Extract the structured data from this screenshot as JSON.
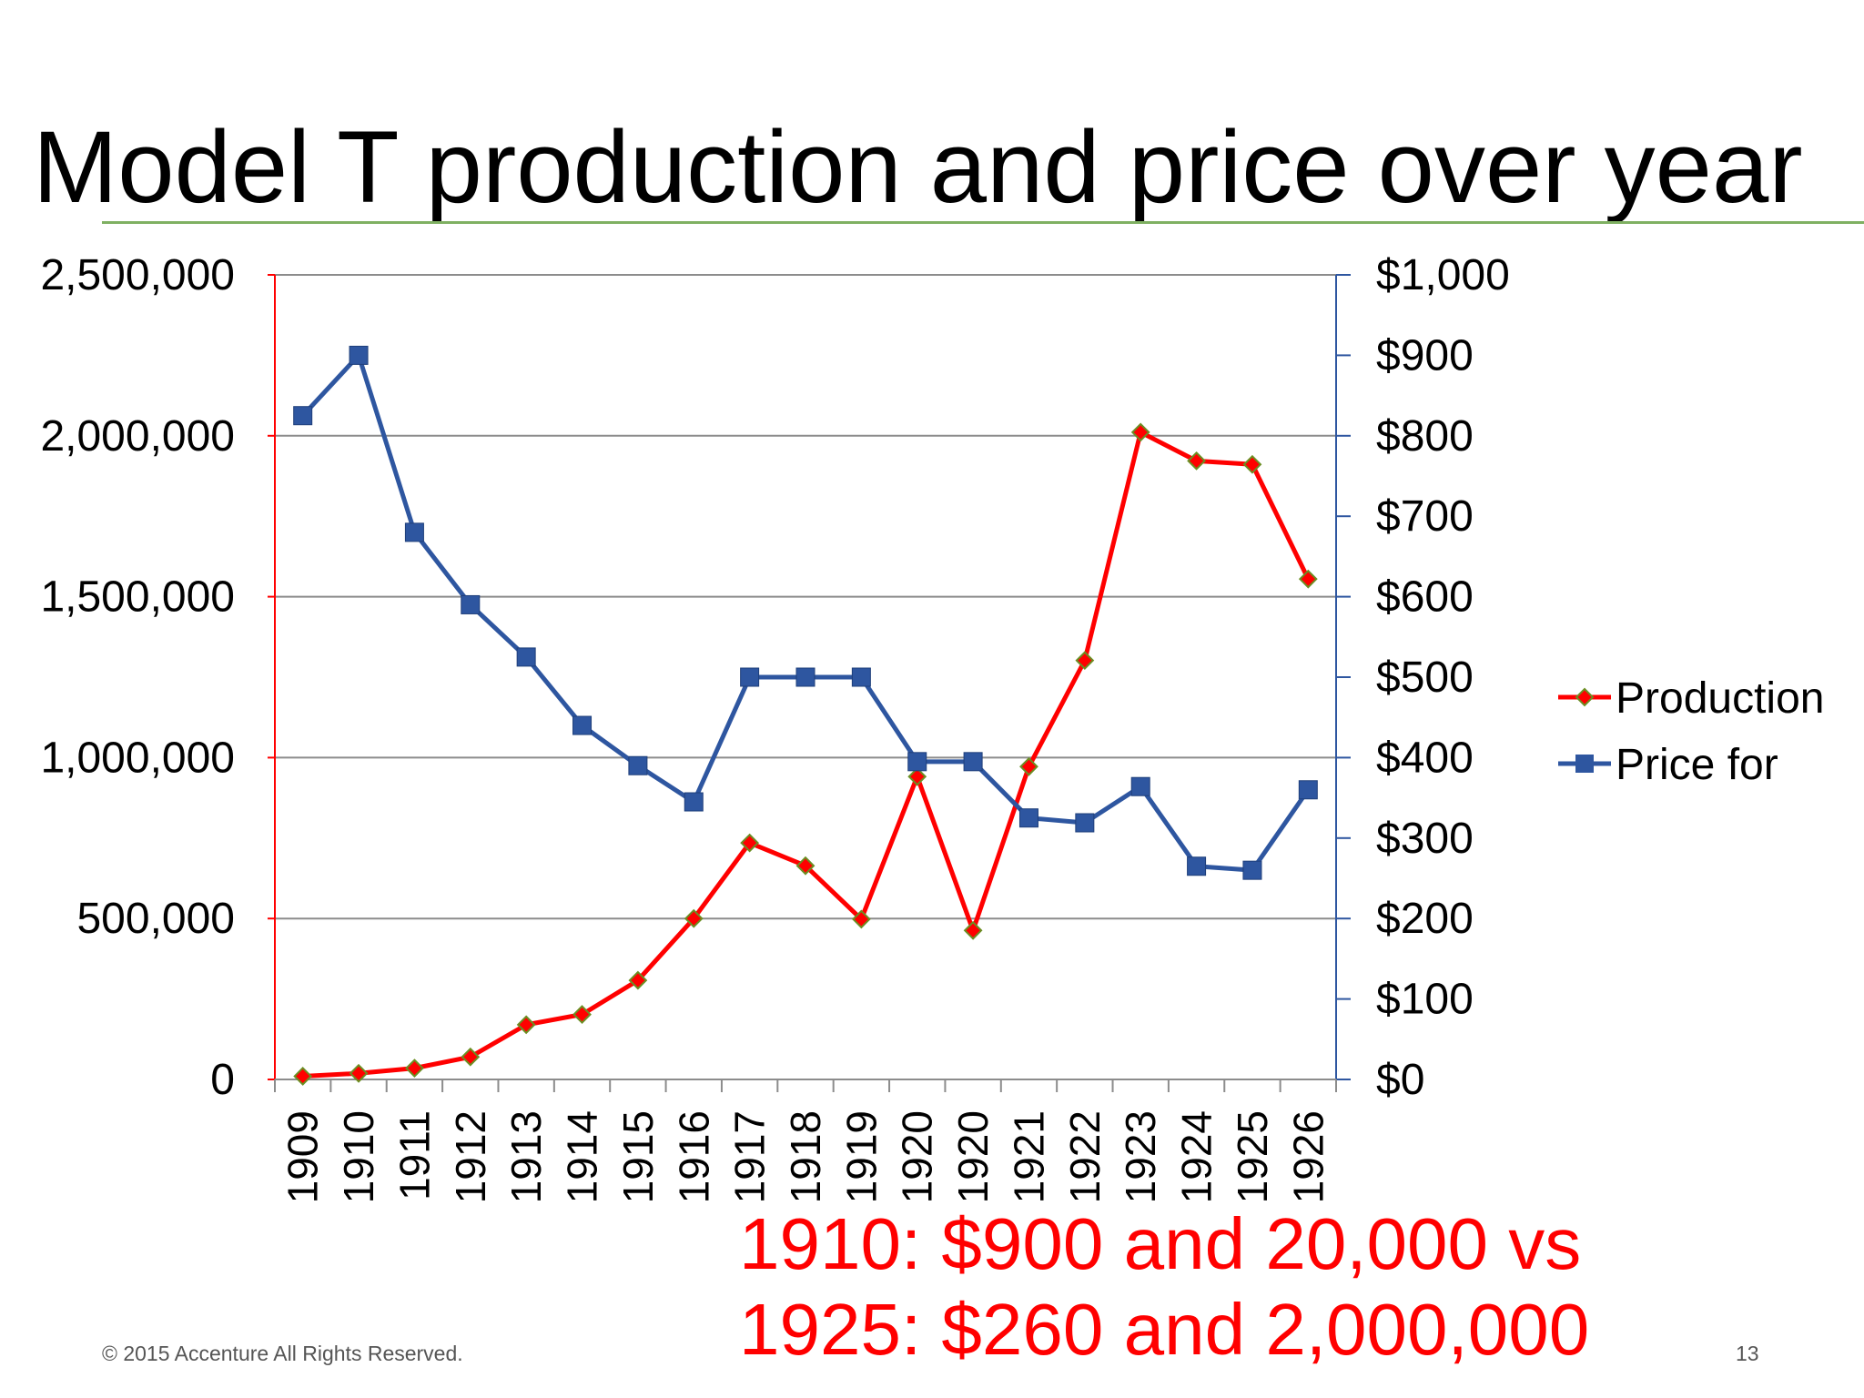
{
  "slide": {
    "title": "Model T production and price over year",
    "callout_lines": [
      "1910: $900 and 20,000 vs",
      "1925: $260 and 2,000,000"
    ],
    "copyright": "© 2015 Accenture  All Rights Reserved.",
    "page_number": "13"
  },
  "chart_data": {
    "type": "line",
    "title": "",
    "categories": [
      "1909",
      "1910",
      "1911",
      "1912",
      "1913",
      "1914",
      "1915",
      "1916",
      "1917",
      "1918",
      "1919",
      "1920",
      "1920",
      "1921",
      "1922",
      "1923",
      "1924",
      "1925",
      "1926"
    ],
    "series": [
      {
        "name": "Production",
        "axis": "left",
        "color": "#ff0000",
        "marker": "diamond",
        "values": [
          10000,
          19000,
          35000,
          70000,
          170000,
          202000,
          308000,
          500000,
          735000,
          664000,
          498000,
          941000,
          463000,
          972000,
          1302000,
          2011000,
          1922000,
          1911000,
          1555000
        ]
      },
      {
        "name": "Price for",
        "axis": "right",
        "color": "#2e56a0",
        "marker": "square",
        "values": [
          825,
          900,
          680,
          590,
          525,
          440,
          390,
          345,
          500,
          500,
          500,
          395,
          395,
          325,
          319,
          364,
          265,
          260,
          360
        ]
      }
    ],
    "left_axis": {
      "min": 0,
      "max": 2500000,
      "ticks": [
        0,
        500000,
        1000000,
        1500000,
        2000000,
        2500000
      ],
      "tick_labels": [
        "0",
        "500,000",
        "1,000,000",
        "1,500,000",
        "2,000,000",
        "2,500,000"
      ],
      "color": "#ff0000"
    },
    "right_axis": {
      "min": 0,
      "max": 1000,
      "ticks": [
        0,
        100,
        200,
        300,
        400,
        500,
        600,
        700,
        800,
        900,
        1000
      ],
      "tick_labels": [
        "$0",
        "$100",
        "$200",
        "$300",
        "$400",
        "$500",
        "$600",
        "$700",
        "$800",
        "$900",
        "$1,000"
      ],
      "color": "#2e56a0"
    },
    "gridlines": true,
    "legend_position": "right"
  }
}
